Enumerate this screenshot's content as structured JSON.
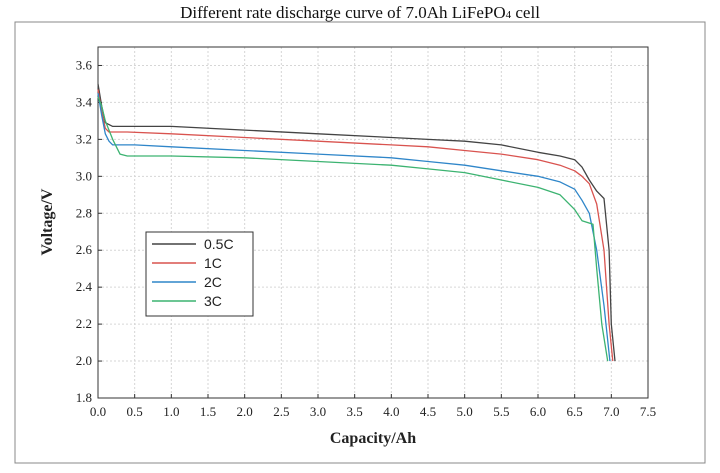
{
  "title": {
    "main": "Different rate discharge curve of 7.0Ah LiFePO",
    "subscript": "4",
    "suffix": " cell"
  },
  "chart_data": {
    "type": "line",
    "title": "Different rate discharge curve of 7.0Ah LiFePO4 cell",
    "xlabel": "Capacity/Ah",
    "ylabel": "Voltage/V",
    "xlim": [
      0.0,
      7.5
    ],
    "ylim": [
      1.8,
      3.7
    ],
    "xticks": [
      "0.0",
      "0.5",
      "1.0",
      "1.5",
      "2.0",
      "2.5",
      "3.0",
      "3.5",
      "4.0",
      "4.5",
      "5.0",
      "5.5",
      "6.0",
      "6.5",
      "7.0",
      "7.5"
    ],
    "yticks": [
      "1.8",
      "2.0",
      "2.2",
      "2.4",
      "2.6",
      "2.8",
      "3.0",
      "3.2",
      "3.4",
      "3.6"
    ],
    "grid": true,
    "legend_position": "center-left",
    "series": [
      {
        "name": "0.5C",
        "color": "#444444",
        "x": [
          0.0,
          0.05,
          0.1,
          0.15,
          0.2,
          0.4,
          1.0,
          2.0,
          3.0,
          4.0,
          4.5,
          5.0,
          5.5,
          6.0,
          6.3,
          6.5,
          6.6,
          6.7,
          6.8,
          6.9,
          6.97,
          7.0,
          7.05
        ],
        "y": [
          3.5,
          3.38,
          3.29,
          3.28,
          3.27,
          3.27,
          3.27,
          3.25,
          3.23,
          3.21,
          3.2,
          3.19,
          3.17,
          3.13,
          3.11,
          3.09,
          3.05,
          2.98,
          2.92,
          2.88,
          2.6,
          2.2,
          2.0
        ]
      },
      {
        "name": "1C",
        "color": "#d9534f",
        "x": [
          0.0,
          0.05,
          0.1,
          0.15,
          0.2,
          0.4,
          1.0,
          2.0,
          3.0,
          4.0,
          4.5,
          5.0,
          5.5,
          6.0,
          6.3,
          6.5,
          6.6,
          6.7,
          6.8,
          6.9,
          6.97,
          7.02
        ],
        "y": [
          3.47,
          3.35,
          3.26,
          3.24,
          3.24,
          3.24,
          3.23,
          3.21,
          3.19,
          3.17,
          3.16,
          3.14,
          3.12,
          3.09,
          3.06,
          3.03,
          3.0,
          2.96,
          2.85,
          2.6,
          2.2,
          2.0
        ]
      },
      {
        "name": "2C",
        "color": "#2f86c9",
        "x": [
          0.0,
          0.05,
          0.1,
          0.15,
          0.2,
          0.3,
          0.5,
          1.0,
          2.0,
          3.0,
          4.0,
          4.5,
          5.0,
          5.5,
          6.0,
          6.3,
          6.5,
          6.6,
          6.7,
          6.8,
          6.9,
          6.98
        ],
        "y": [
          3.45,
          3.33,
          3.23,
          3.19,
          3.17,
          3.17,
          3.17,
          3.16,
          3.14,
          3.12,
          3.1,
          3.08,
          3.06,
          3.03,
          3.0,
          2.97,
          2.93,
          2.87,
          2.8,
          2.6,
          2.3,
          2.0
        ]
      },
      {
        "name": "3C",
        "color": "#3cb371",
        "x": [
          0.0,
          0.05,
          0.1,
          0.2,
          0.3,
          0.4,
          1.0,
          2.0,
          3.0,
          4.0,
          4.5,
          5.0,
          5.5,
          6.0,
          6.3,
          6.5,
          6.6,
          6.75,
          6.8,
          6.87,
          6.95
        ],
        "y": [
          3.43,
          3.38,
          3.3,
          3.2,
          3.12,
          3.11,
          3.11,
          3.1,
          3.08,
          3.06,
          3.04,
          3.02,
          2.98,
          2.94,
          2.9,
          2.82,
          2.76,
          2.74,
          2.5,
          2.2,
          2.0
        ]
      }
    ]
  }
}
